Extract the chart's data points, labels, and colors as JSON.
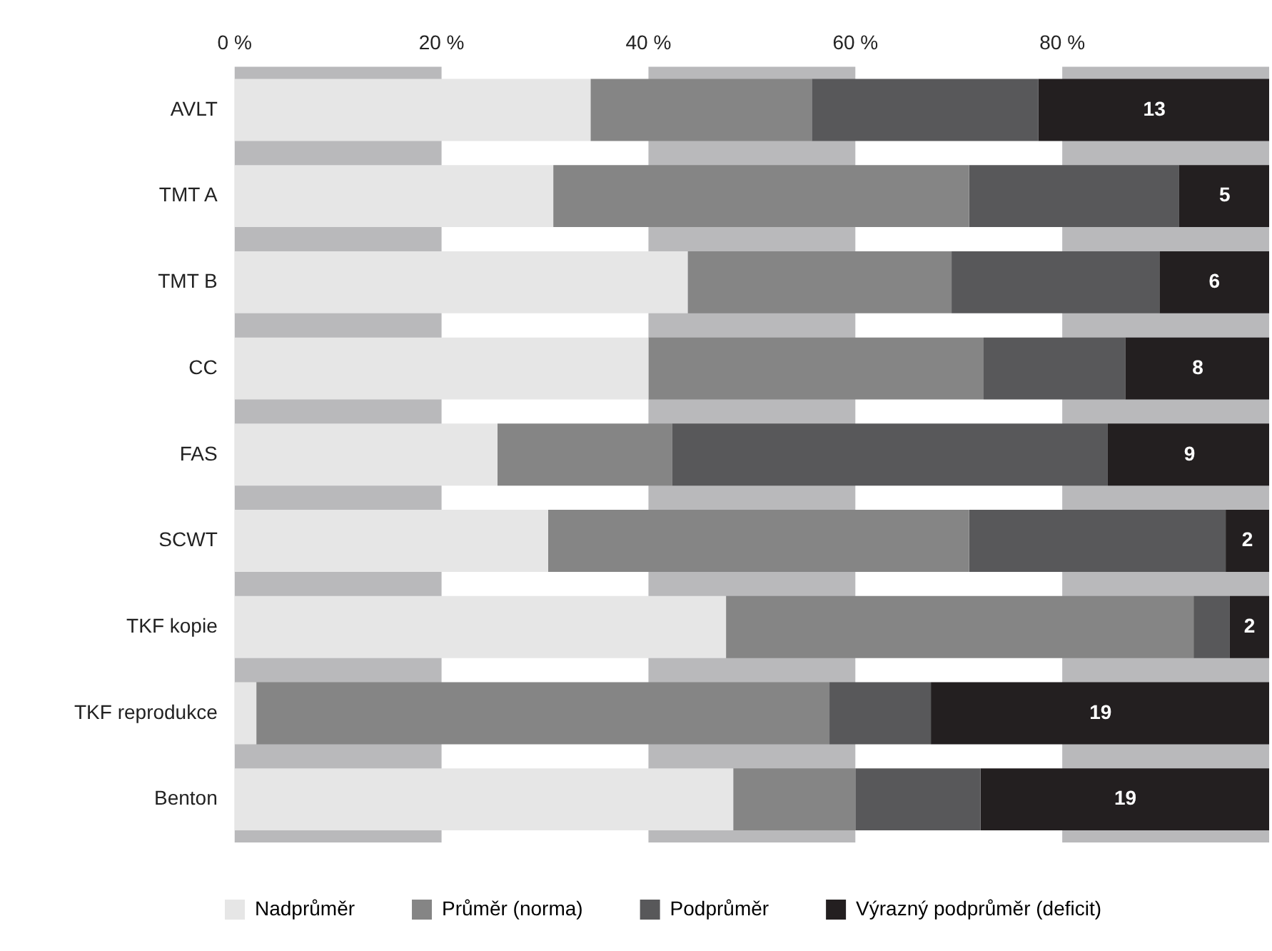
{
  "chart_data": {
    "type": "bar",
    "orientation": "horizontal",
    "stacked": true,
    "categories": [
      "AVLT",
      "TMT A",
      "TMT B",
      "CC",
      "FAS",
      "SCWT",
      "TKF kopie",
      "TKF reprodukce",
      "Benton"
    ],
    "series": [
      {
        "name": "Nadprůměr",
        "color": "#e6e6e6",
        "values": [
          34.4,
          30.8,
          43.8,
          40,
          25.4,
          30.3,
          47.5,
          2.1,
          48.2
        ]
      },
      {
        "name": "Průměr (norma)",
        "color": "#858585",
        "values": [
          21.4,
          40.2,
          25.5,
          32.4,
          16.9,
          40.7,
          45.2,
          55.4,
          11.8
        ]
      },
      {
        "name": "Podprůměr",
        "color": "#58585a",
        "values": [
          21.9,
          20.3,
          20.1,
          13.7,
          42.1,
          24.8,
          3.5,
          9.8,
          12.1
        ]
      },
      {
        "name": "Výrazný podprůměr (deficit)",
        "color": "#231f20",
        "values": [
          22.3,
          8.7,
          10.6,
          13.9,
          15.6,
          4.2,
          3.8,
          32.7,
          27.9
        ]
      }
    ],
    "annotations": [
      {
        "text": "13",
        "x": 88.9,
        "y": "AVLT"
      },
      {
        "text": "5",
        "x": 95.7,
        "y": "TMT A"
      },
      {
        "text": "6",
        "x": 94.7,
        "y": "TMT B"
      },
      {
        "text": "8",
        "x": 93.1,
        "y": "CC"
      },
      {
        "text": "9",
        "x": 92.3,
        "y": "FAS"
      },
      {
        "text": "2",
        "x": 97.9,
        "y": "SCWT"
      },
      {
        "text": "2",
        "x": 98.1,
        "y": "TKF kopie"
      },
      {
        "text": "19",
        "x": 83.7,
        "y": "TKF reprodukce"
      },
      {
        "text": "19",
        "x": 86.1,
        "y": "Benton"
      }
    ],
    "xlim": [
      0,
      100
    ],
    "xticks": [
      {
        "value": 0,
        "label": "0 %"
      },
      {
        "value": 20,
        "label": "20 %"
      },
      {
        "value": 40,
        "label": "40 %"
      },
      {
        "value": 60,
        "label": "60 %"
      },
      {
        "value": 80,
        "label": "80 %"
      }
    ],
    "bands": [
      {
        "axis": "x",
        "from": 0,
        "to": 20,
        "color": "#b9b9bb"
      },
      {
        "axis": "x",
        "from": 40,
        "to": 60,
        "color": "#b9b9bb"
      },
      {
        "axis": "x",
        "from": 80,
        "to": 100,
        "color": "#b9b9bb"
      }
    ],
    "grid": false,
    "legend": "bottom"
  }
}
